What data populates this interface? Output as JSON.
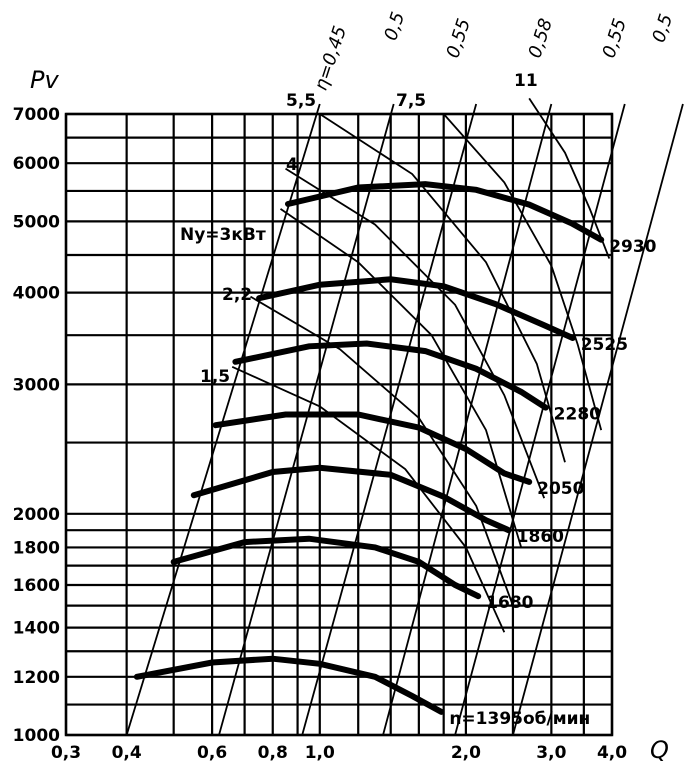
{
  "chart_data": {
    "type": "line",
    "xlabel": "Q",
    "ylabel": "Pv",
    "x_scale": "log",
    "y_scale": "log",
    "xlim": [
      0.3,
      4.0
    ],
    "ylim": [
      1000,
      7000
    ],
    "x_ticks": [
      0.3,
      0.4,
      0.6,
      0.8,
      1.0,
      2.0,
      3.0,
      4.0
    ],
    "x_tick_labels": [
      "0,3",
      "0,4",
      "0,6",
      "0,8",
      "1,0",
      "2,0",
      "3,0",
      "4,0"
    ],
    "x_grid": [
      0.3,
      0.4,
      0.5,
      0.6,
      0.7,
      0.8,
      0.9,
      1.0,
      1.2,
      1.4,
      1.6,
      1.8,
      2.0,
      2.5,
      3.0,
      3.5,
      4.0
    ],
    "y_ticks": [
      1000,
      1200,
      1400,
      1600,
      1800,
      2000,
      3000,
      4000,
      5000,
      6000,
      7000
    ],
    "y_tick_labels": [
      "1000",
      "1200",
      "1400",
      "1600",
      "1800",
      "2000",
      "3000",
      "4000",
      "5000",
      "6000",
      "7000"
    ],
    "y_grid": [
      1000,
      1100,
      1200,
      1300,
      1400,
      1500,
      1600,
      1700,
      1800,
      1900,
      2000,
      2500,
      3000,
      3500,
      4000,
      4500,
      5000,
      5500,
      6000,
      6500,
      7000
    ],
    "speed_curves": [
      {
        "label": "n=1395об/мин",
        "points": [
          [
            0.42,
            1200
          ],
          [
            0.6,
            1255
          ],
          [
            0.8,
            1270
          ],
          [
            1.0,
            1250
          ],
          [
            1.3,
            1200
          ],
          [
            1.55,
            1130
          ],
          [
            1.78,
            1075
          ]
        ]
      },
      {
        "label": "1680",
        "points": [
          [
            0.5,
            1720
          ],
          [
            0.7,
            1830
          ],
          [
            0.95,
            1850
          ],
          [
            1.3,
            1800
          ],
          [
            1.6,
            1720
          ],
          [
            1.9,
            1600
          ],
          [
            2.12,
            1545
          ]
        ]
      },
      {
        "label": "1860",
        "points": [
          [
            0.55,
            2120
          ],
          [
            0.8,
            2280
          ],
          [
            1.0,
            2310
          ],
          [
            1.4,
            2260
          ],
          [
            1.8,
            2110
          ],
          [
            2.2,
            1960
          ],
          [
            2.45,
            1900
          ]
        ]
      },
      {
        "label": "2050",
        "points": [
          [
            0.61,
            2640
          ],
          [
            0.85,
            2730
          ],
          [
            1.2,
            2730
          ],
          [
            1.6,
            2620
          ],
          [
            2.0,
            2450
          ],
          [
            2.4,
            2270
          ],
          [
            2.7,
            2210
          ]
        ]
      },
      {
        "label": "2280",
        "points": [
          [
            0.67,
            3220
          ],
          [
            0.95,
            3380
          ],
          [
            1.25,
            3410
          ],
          [
            1.65,
            3330
          ],
          [
            2.1,
            3150
          ],
          [
            2.6,
            2930
          ],
          [
            2.92,
            2790
          ]
        ]
      },
      {
        "label": "2525",
        "points": [
          [
            0.75,
            3930
          ],
          [
            1.0,
            4100
          ],
          [
            1.4,
            4170
          ],
          [
            1.8,
            4080
          ],
          [
            2.3,
            3860
          ],
          [
            2.9,
            3610
          ],
          [
            3.32,
            3470
          ]
        ]
      },
      {
        "label": "2930",
        "points": [
          [
            0.86,
            5280
          ],
          [
            1.2,
            5560
          ],
          [
            1.65,
            5620
          ],
          [
            2.1,
            5520
          ],
          [
            2.7,
            5270
          ],
          [
            3.3,
            4970
          ],
          [
            3.8,
            4720
          ]
        ]
      }
    ],
    "efficiency_rays": [
      {
        "label": "η=0,45",
        "points": [
          [
            0.4,
            1000
          ],
          [
            1.0,
            7000
          ]
        ]
      },
      {
        "label": "0,5",
        "points": [
          [
            0.62,
            1000
          ],
          [
            1.42,
            7000
          ]
        ]
      },
      {
        "label": "0,55",
        "points": [
          [
            0.92,
            1000
          ],
          [
            2.1,
            7000
          ]
        ]
      },
      {
        "label": "0,58",
        "points": [
          [
            1.35,
            1000
          ],
          [
            3.0,
            7000
          ]
        ]
      },
      {
        "label": "0,55",
        "points": [
          [
            1.9,
            1000
          ],
          [
            4.25,
            7000
          ]
        ]
      },
      {
        "label": "0,5",
        "points": [
          [
            2.5,
            1000
          ],
          [
            5.6,
            7000
          ]
        ]
      }
    ],
    "power_lines": [
      {
        "label": "1,5",
        "points": [
          [
            0.66,
            3170
          ],
          [
            1.0,
            2800
          ],
          [
            1.5,
            2300
          ],
          [
            2.0,
            1800
          ],
          [
            2.4,
            1380
          ]
        ]
      },
      {
        "label": "2,2",
        "points": [
          [
            0.72,
            3950
          ],
          [
            1.1,
            3350
          ],
          [
            1.6,
            2700
          ],
          [
            2.1,
            2050
          ],
          [
            2.5,
            1500
          ]
        ]
      },
      {
        "label": "Ny=3кВт",
        "points": [
          [
            0.83,
            5200
          ],
          [
            1.2,
            4400
          ],
          [
            1.7,
            3500
          ],
          [
            2.2,
            2600
          ],
          [
            2.6,
            1800
          ]
        ]
      },
      {
        "label": "4",
        "points": [
          [
            0.85,
            5900
          ],
          [
            1.3,
            4950
          ],
          [
            1.9,
            3850
          ],
          [
            2.4,
            2900
          ],
          [
            2.9,
            2100
          ]
        ]
      },
      {
        "label": "5,5",
        "points": [
          [
            1.0,
            7000
          ],
          [
            1.55,
            5800
          ],
          [
            2.2,
            4400
          ],
          [
            2.8,
            3200
          ],
          [
            3.2,
            2350
          ]
        ]
      },
      {
        "label": "7,5",
        "points": [
          [
            1.8,
            7000
          ],
          [
            2.4,
            5650
          ],
          [
            3.0,
            4350
          ],
          [
            3.4,
            3400
          ],
          [
            3.8,
            2600
          ]
        ]
      },
      {
        "label": "11",
        "points": [
          [
            2.7,
            7350
          ],
          [
            3.2,
            6200
          ],
          [
            3.6,
            5200
          ],
          [
            3.95,
            4450
          ]
        ]
      }
    ]
  }
}
